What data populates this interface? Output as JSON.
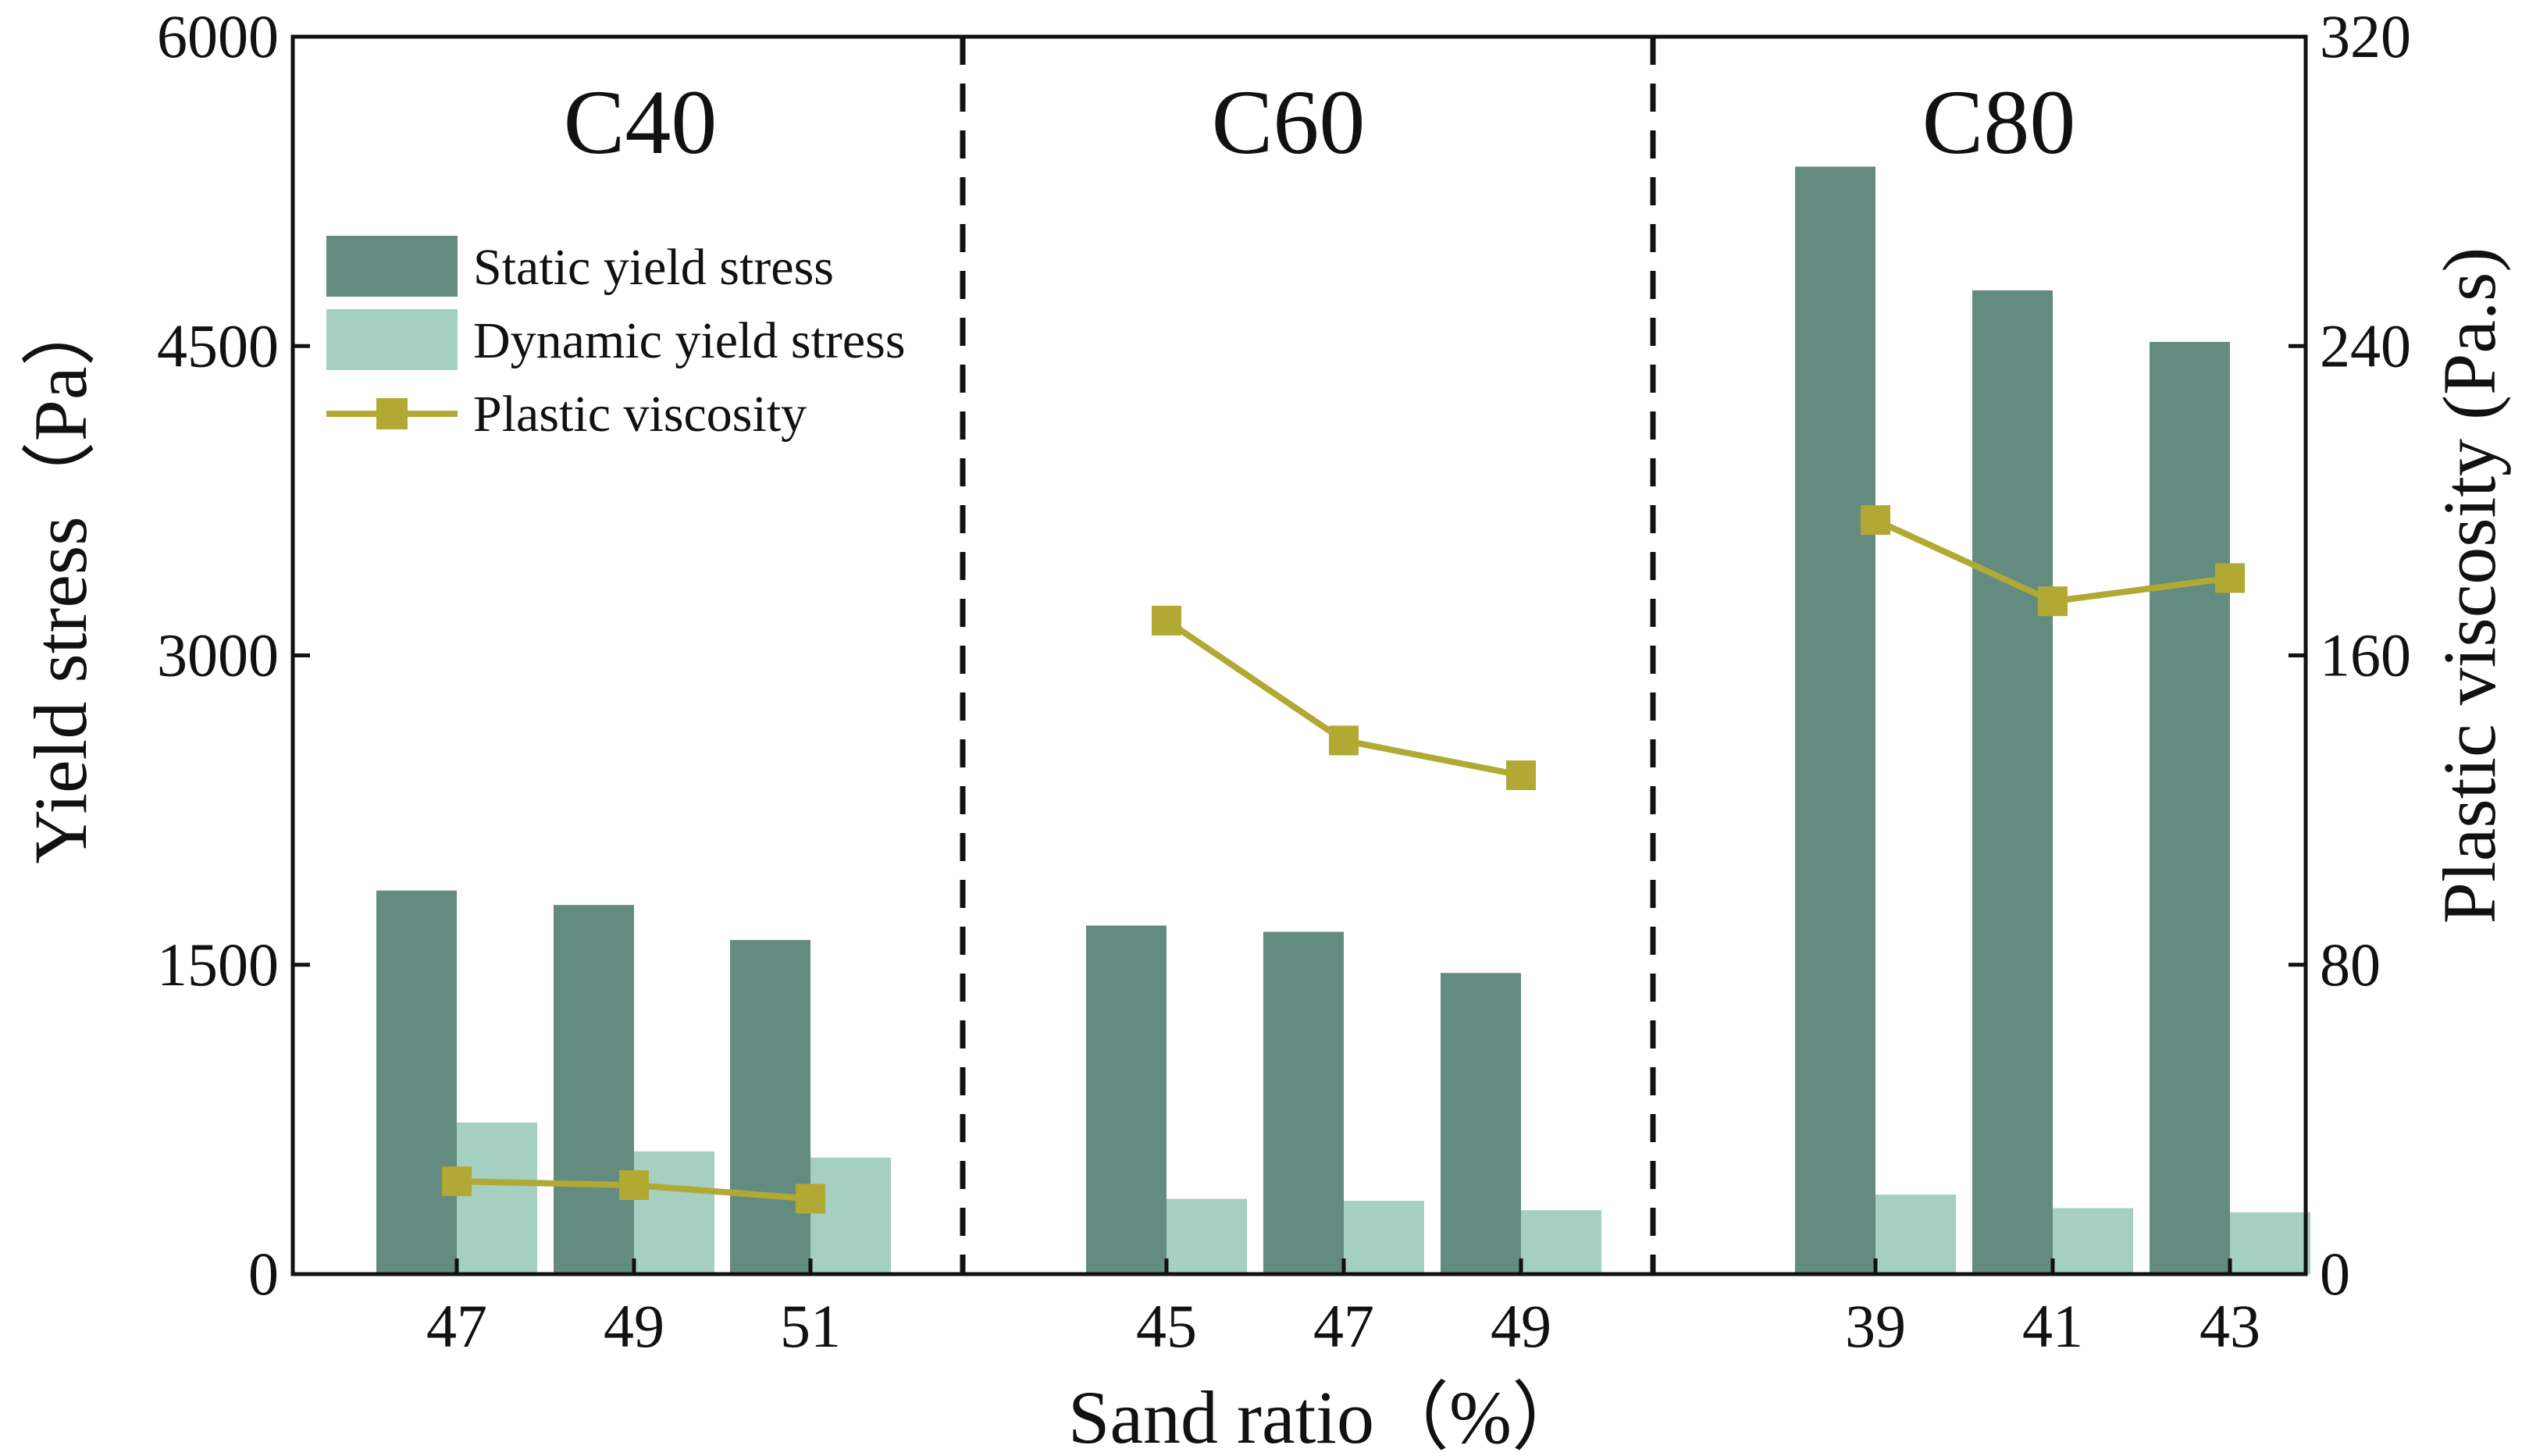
{
  "chart_data": {
    "type": "bar",
    "groups": [
      {
        "name": "C40",
        "categories": [
          "47",
          "49",
          "51"
        ]
      },
      {
        "name": "C60",
        "categories": [
          "45",
          "47",
          "49"
        ]
      },
      {
        "name": "C80",
        "categories": [
          "39",
          "41",
          "43"
        ]
      }
    ],
    "series": [
      {
        "name": "Static yield stress",
        "type": "bar",
        "axis": "left",
        "color": "#638b80",
        "values": [
          1860,
          1790,
          1620,
          1690,
          1660,
          1460,
          5370,
          4770,
          4520
        ]
      },
      {
        "name": "Dynamic yield stress",
        "type": "bar",
        "axis": "left",
        "color": "#a5cfc1",
        "values": [
          735,
          595,
          565,
          365,
          355,
          310,
          385,
          320,
          300
        ]
      },
      {
        "name": "Plastic viscosity",
        "type": "line",
        "axis": "right",
        "color": "#b2a934",
        "marker": "square",
        "values": [
          24,
          23,
          19.5,
          169,
          138,
          129,
          195,
          174,
          180
        ]
      }
    ],
    "left_axis": {
      "label": "Yield stress（Pa）",
      "ylim": [
        0,
        6000
      ],
      "ticks": [
        "0",
        "1500",
        "3000",
        "4500",
        "6000"
      ]
    },
    "right_axis": {
      "label": "Plastic viscosity (Pa.s)",
      "ylim": [
        0,
        320
      ],
      "ticks": [
        "0",
        "80",
        "160",
        "240",
        "320"
      ]
    },
    "xlabel": "Sand ratio（%）",
    "legend": {
      "position": "upper-left",
      "labels": [
        "Static yield stress",
        "Dynamic yield stress",
        "Plastic viscosity"
      ]
    }
  }
}
